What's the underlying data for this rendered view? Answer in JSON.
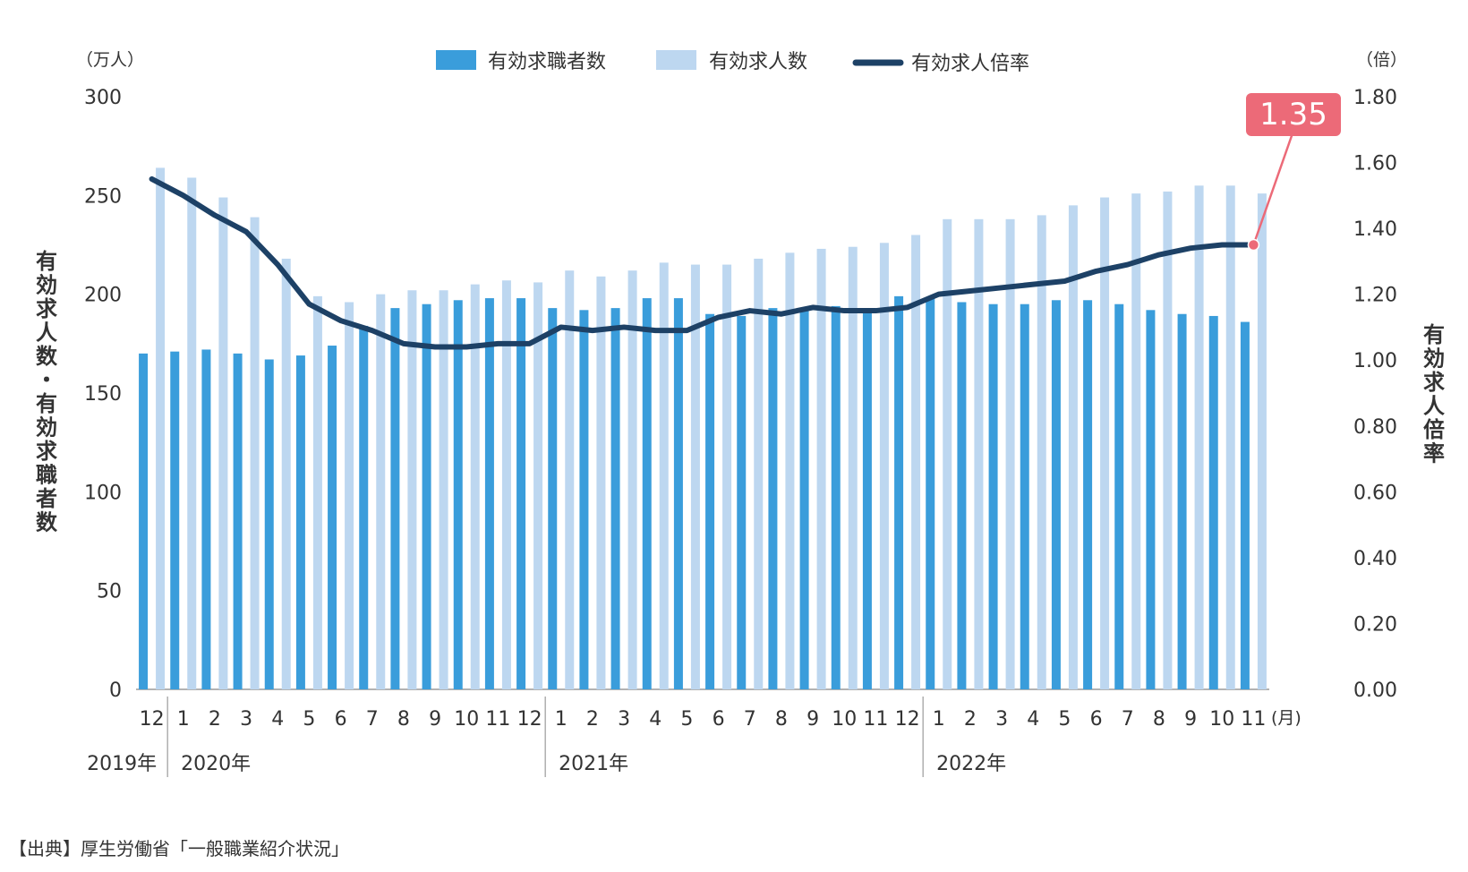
{
  "chart_data": {
    "type": "bar",
    "title": "",
    "left_unit": "（万人）",
    "right_unit": "（倍）",
    "ylabel_left": "有効求人数・有効求職者数",
    "ylabel_right": "有効求人倍率",
    "ylim_left": [
      0,
      300
    ],
    "ylim_right": [
      0,
      1.8
    ],
    "yticks_left": [
      "0",
      "50",
      "100",
      "150",
      "200",
      "250",
      "300"
    ],
    "yticks_right": [
      "0.00",
      "0.20",
      "0.40",
      "0.60",
      "0.80",
      "1.00",
      "1.20",
      "1.40",
      "1.60",
      "1.80"
    ],
    "categories": [
      "12",
      "1",
      "2",
      "3",
      "4",
      "5",
      "6",
      "7",
      "8",
      "9",
      "10",
      "11",
      "12",
      "1",
      "2",
      "3",
      "4",
      "5",
      "6",
      "7",
      "8",
      "9",
      "10",
      "11",
      "12",
      "1",
      "2",
      "3",
      "4",
      "5",
      "6",
      "7",
      "8",
      "9",
      "10",
      "11"
    ],
    "month_suffix": "(月)",
    "years": [
      {
        "label": "2019年",
        "start": 0
      },
      {
        "label": "2020年",
        "start": 1
      },
      {
        "label": "2021年",
        "start": 13
      },
      {
        "label": "2022年",
        "start": 25
      }
    ],
    "legend_position": "top-center",
    "series": [
      {
        "name": "有効求職者数",
        "kind": "bar",
        "color": "#3a9ddb",
        "values": [
          170,
          171,
          172,
          170,
          167,
          169,
          174,
          184,
          193,
          195,
          197,
          198,
          198,
          193,
          192,
          193,
          198,
          198,
          190,
          189,
          193,
          192,
          194,
          193,
          199,
          198,
          196,
          195,
          195,
          197,
          197,
          195,
          192,
          190,
          189,
          186
        ]
      },
      {
        "name": "有効求人数",
        "kind": "bar",
        "color": "#bdd7f0",
        "values": [
          264,
          259,
          249,
          239,
          218,
          199,
          196,
          200,
          202,
          202,
          205,
          207,
          206,
          212,
          209,
          212,
          216,
          215,
          215,
          218,
          221,
          223,
          224,
          226,
          230,
          238,
          238,
          238,
          240,
          245,
          249,
          251,
          252,
          255,
          255,
          251
        ]
      },
      {
        "name": "有効求人倍率",
        "kind": "line",
        "axis": "right",
        "color": "#1d4166",
        "values": [
          1.55,
          1.5,
          1.44,
          1.39,
          1.29,
          1.17,
          1.12,
          1.09,
          1.05,
          1.04,
          1.04,
          1.05,
          1.05,
          1.1,
          1.09,
          1.1,
          1.09,
          1.09,
          1.13,
          1.15,
          1.14,
          1.16,
          1.15,
          1.15,
          1.16,
          1.2,
          1.21,
          1.22,
          1.23,
          1.24,
          1.27,
          1.29,
          1.32,
          1.34,
          1.35,
          1.35
        ]
      }
    ],
    "annotation": {
      "text": "1.35",
      "color": "#ec6a78",
      "index": 35
    }
  },
  "source": "【出典】厚生労働省「一般職業紹介状況」"
}
